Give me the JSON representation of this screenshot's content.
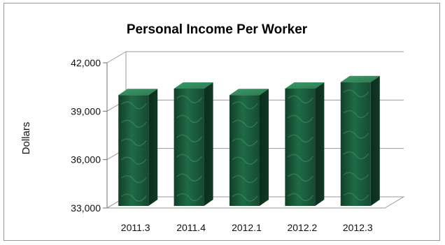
{
  "chart_data": {
    "type": "bar",
    "title": "Personal Income Per Worker",
    "ylabel": "Dollars",
    "xlabel": "",
    "categories": [
      "2011.3",
      "2011.4",
      "2012.1",
      "2012.2",
      "2012.3"
    ],
    "values": [
      40000,
      40400,
      40000,
      40400,
      40800
    ],
    "ylim": [
      33000,
      42000
    ],
    "yticks": [
      "33,000",
      "36,000",
      "39,000",
      "42,000"
    ],
    "ytick_values": [
      33000,
      36000,
      39000,
      42000
    ],
    "grid": true,
    "legend": "none",
    "bar_color": "#1f6b45"
  }
}
